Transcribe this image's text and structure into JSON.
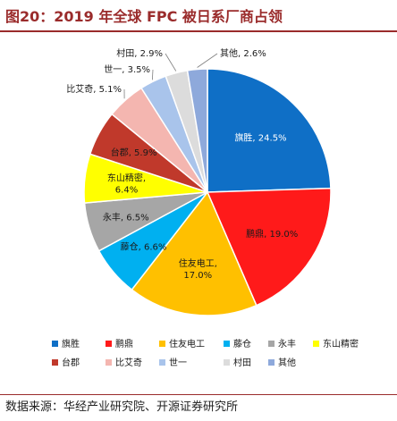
{
  "header": {
    "title": "图20：2019 年全球 FPC 被日系厂商占领"
  },
  "footer": {
    "source": "数据来源：华经产业研究院、开源证券研究所"
  },
  "chart_data": {
    "type": "pie",
    "title": "",
    "labels": [
      "旗胜",
      "鹏鼎",
      "住友电工",
      "藤仓",
      "永丰",
      "东山精密",
      "台郡",
      "比艾奇",
      "世一",
      "村田",
      "其他"
    ],
    "values": [
      24.5,
      19.0,
      17.0,
      6.6,
      6.5,
      6.4,
      5.9,
      5.1,
      3.5,
      2.9,
      2.6
    ],
    "value_labels": [
      "旗胜, 24.5%",
      "鹏鼎, 19.0%",
      "住友电工, 17.0%",
      "藤仓, 6.6%",
      "永丰, 6.5%",
      "东山精密, 6.4%",
      "台郡, 5.9%",
      "比艾奇, 5.1%",
      "世一, 3.5%",
      "村田, 2.9%",
      "其他, 2.6%"
    ],
    "colors": [
      "#0f6fc6",
      "#ff1a1a",
      "#ffc000",
      "#00b0f0",
      "#a6a6a6",
      "#ffff00",
      "#c0392b",
      "#f4b6b0",
      "#a9c4eb",
      "#dcdcdc",
      "#8ea9db"
    ],
    "legend_position": "bottom",
    "start_angle_deg": 0,
    "direction": "clockwise"
  }
}
